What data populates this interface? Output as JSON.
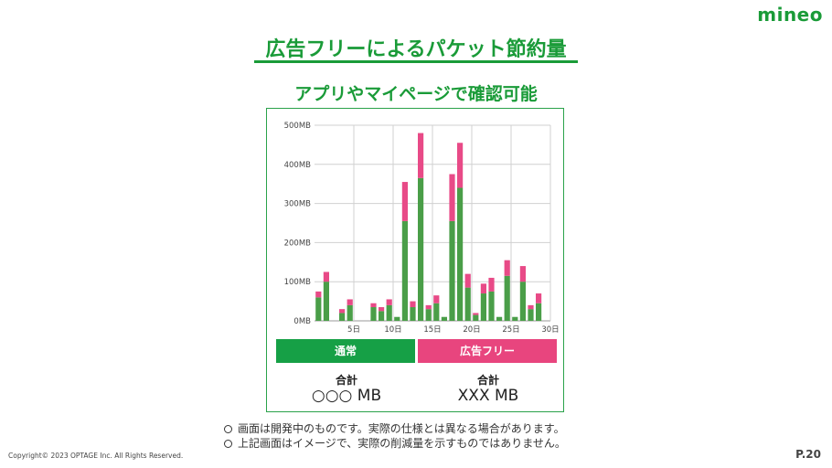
{
  "brand": {
    "logo_text": "mineo",
    "logo_color": "#1a9b38",
    "dot_color": "#e8417f"
  },
  "header": {
    "title": "広告フリーによるパケット節約量",
    "subtitle": "アプリやマイページで確認可能"
  },
  "legend": {
    "normal_label": "通常",
    "adfree_label": "広告フリー",
    "normal_color": "#16a046",
    "adfree_color": "#e8457e"
  },
  "totals": {
    "normal_label": "合計",
    "normal_value": "○○○ MB",
    "adfree_label": "合計",
    "adfree_value": "XXX MB"
  },
  "notes": [
    "画面は開発中のものです。実際の仕様とは異なる場合があります。",
    "上記画面はイメージで、実際の削減量を示すものではありません。"
  ],
  "footer": {
    "copyright": "Copyright© 2023 OPTAGE Inc. All Rights Reserved.",
    "page": "P.20"
  },
  "chart_data": {
    "type": "bar",
    "stacked": true,
    "ylim": [
      0,
      500
    ],
    "y_ticks": [
      "0MB",
      "100MB",
      "200MB",
      "300MB",
      "400MB",
      "500MB"
    ],
    "x_ticks": [
      {
        "day": 5,
        "label": "5日"
      },
      {
        "day": 10,
        "label": "10日"
      },
      {
        "day": 15,
        "label": "15日"
      },
      {
        "day": 20,
        "label": "20日"
      },
      {
        "day": 25,
        "label": "25日"
      },
      {
        "day": 30,
        "label": "30日"
      }
    ],
    "days": [
      1,
      2,
      3,
      4,
      5,
      6,
      7,
      8,
      9,
      10,
      11,
      12,
      13,
      14,
      15,
      16,
      17,
      18,
      19,
      20,
      21,
      22,
      23,
      24,
      25,
      26,
      27,
      28,
      29,
      30
    ],
    "series": [
      {
        "name": "通常",
        "color": "#4a9e48",
        "values": [
          60,
          100,
          0,
          20,
          40,
          0,
          0,
          35,
          25,
          40,
          10,
          255,
          35,
          365,
          30,
          45,
          10,
          255,
          340,
          85,
          15,
          70,
          75,
          10,
          115,
          10,
          100,
          30,
          45,
          0
        ]
      },
      {
        "name": "広告フリー",
        "color": "#e84a87",
        "values": [
          15,
          25,
          0,
          10,
          15,
          0,
          0,
          10,
          10,
          15,
          0,
          100,
          15,
          115,
          10,
          20,
          0,
          120,
          115,
          35,
          5,
          25,
          35,
          0,
          40,
          0,
          40,
          10,
          25,
          0
        ]
      }
    ],
    "grid": true
  }
}
